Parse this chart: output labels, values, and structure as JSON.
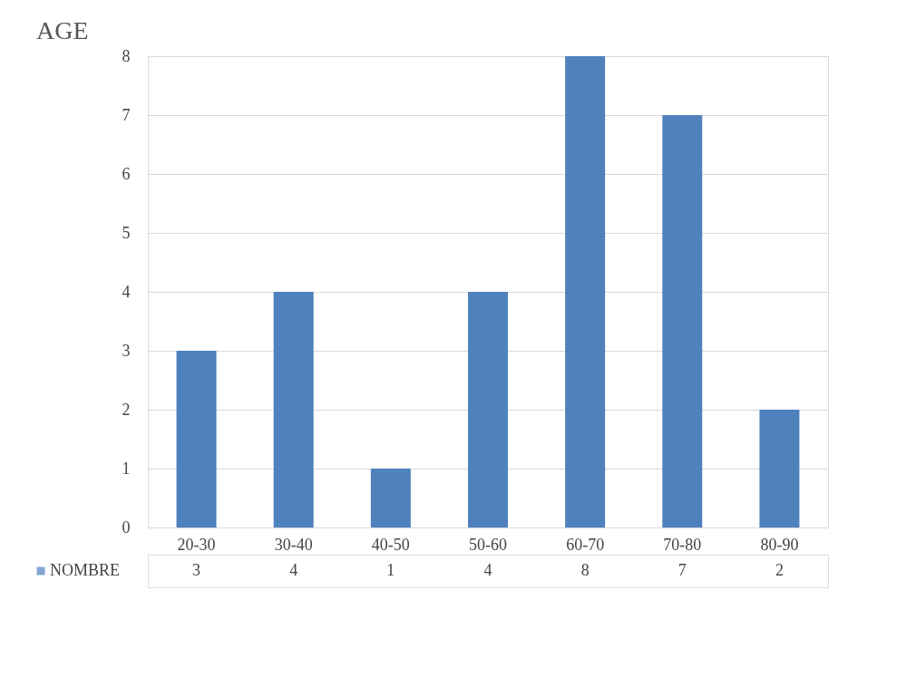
{
  "chart_data": {
    "type": "bar",
    "title": "AGE",
    "categories": [
      "20-30",
      "30-40",
      "40-50",
      "50-60",
      "60-70",
      "70-80",
      "80-90"
    ],
    "series": [
      {
        "name": "NOMBRE",
        "color": "#4f81bd",
        "values": [
          3,
          4,
          1,
          4,
          8,
          7,
          2
        ]
      }
    ],
    "ylim": [
      0,
      8
    ],
    "yticks": [
      0,
      1,
      2,
      3,
      4,
      5,
      6,
      7,
      8
    ],
    "grid": "y",
    "legend": "bottom",
    "data_labels": true
  }
}
